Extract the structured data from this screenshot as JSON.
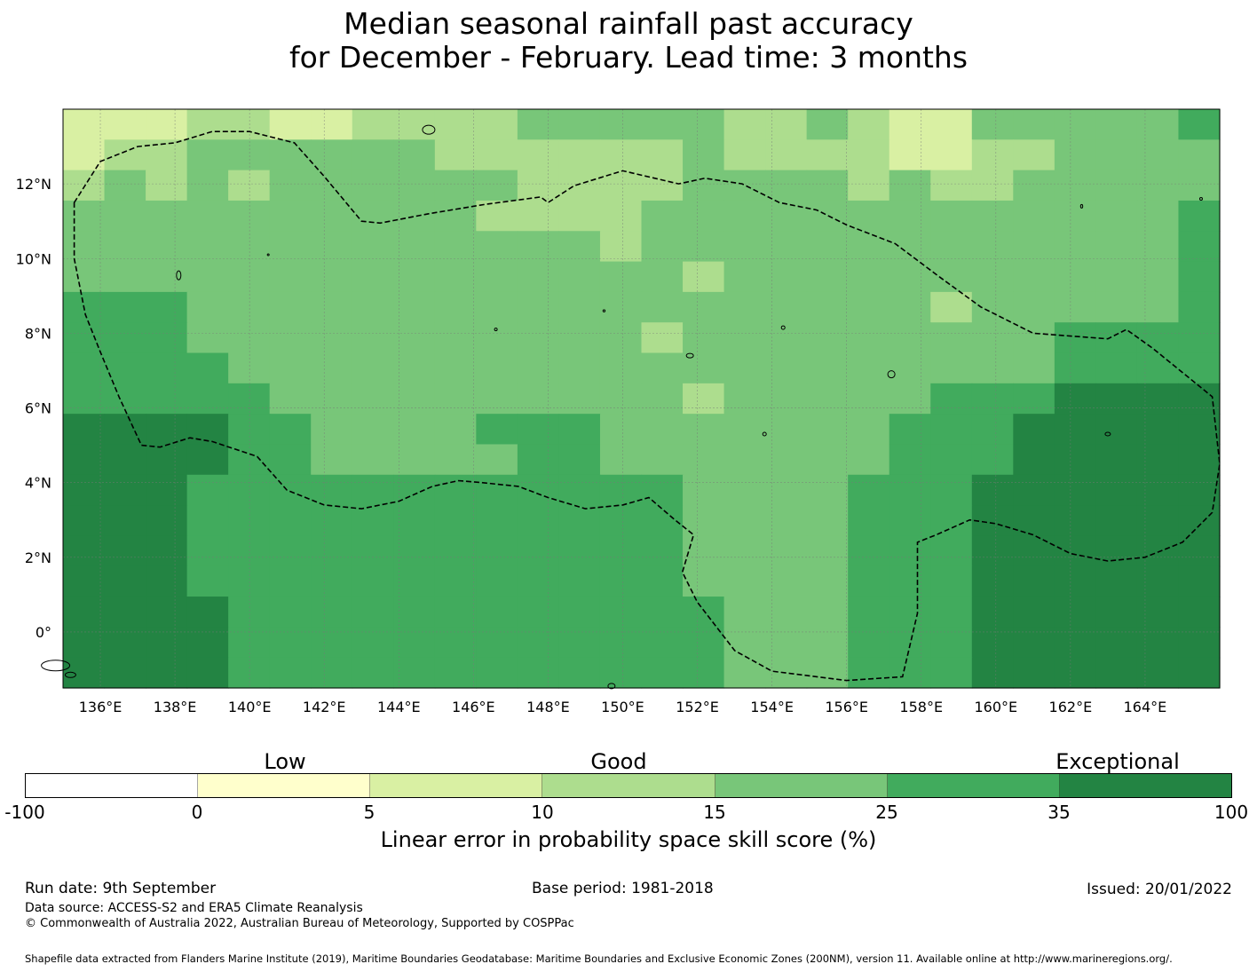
{
  "title_line1": "Median seasonal rainfall past accuracy",
  "title_line2": "for December - February. Lead time: 3 months",
  "chart_data": {
    "type": "heatmap",
    "extent": {
      "lon": [
        135.0,
        166.0
      ],
      "lat": [
        -1.5,
        14.0
      ]
    },
    "grid_cell_deg": 0.833,
    "x_ticks": [
      "136°E",
      "138°E",
      "140°E",
      "142°E",
      "144°E",
      "146°E",
      "148°E",
      "150°E",
      "152°E",
      "154°E",
      "156°E",
      "158°E",
      "160°E",
      "162°E",
      "164°E"
    ],
    "x_tick_values": [
      136,
      138,
      140,
      142,
      144,
      146,
      148,
      150,
      152,
      154,
      156,
      158,
      160,
      162,
      164
    ],
    "y_ticks": [
      "12°N",
      "10°N",
      "8°N",
      "6°N",
      "4°N",
      "2°N",
      "0°"
    ],
    "y_tick_values": [
      12,
      10,
      8,
      6,
      4,
      2,
      0
    ],
    "gridlines": true,
    "category_colors": [
      "#ffffff",
      "#ffffcc",
      "#d9f0a3",
      "#addd8e",
      "#78c679",
      "#41ab5d",
      "#238443"
    ],
    "cells": [
      "2223322333344444334322444445",
      "2334444443333334333322334444",
      "3434344444433334444343344444",
      "4444444444333344444444444445",
      "4444444444444344444444444445",
      "4444444444444443444444444445",
      "5554444444444444444443444445",
      "5554444444444434444444445555",
      "5555444444444444444444445555",
      "5555544444444443444445556666",
      "6666554444555444444455566666",
      "6666554444455444444455566666",
      "6665555555555554444555666666",
      "6665555555555554444555666666",
      "6665555555555554444555666666",
      "6665555555555554444555666666",
      "6666555555555555444555666666",
      "6666555555555555444555666666",
      "6666555555555555444555666666"
    ],
    "eez_boundary_name": "EEZ"
  },
  "colorbar": {
    "category_labels": [
      "Low",
      "Good",
      "Exceptional"
    ],
    "ticks": [
      "-100",
      "0",
      "5",
      "10",
      "15",
      "25",
      "35",
      "100"
    ],
    "colors": [
      "#ffffff",
      "#ffffcc",
      "#d9f0a3",
      "#addd8e",
      "#78c679",
      "#41ab5d",
      "#238443"
    ],
    "label": "Linear error in probability space skill score (%)"
  },
  "footer": {
    "run_date": "Run date: 9th September",
    "base_period": "Base period: 1981-2018",
    "issued": "Issued: 20/01/2022",
    "data_source": "Data source: ACCESS-S2 and ERA5 Climate Reanalysis",
    "copyright": "© Commonwealth of Australia 2022, Australian Bureau of Meteorology, Supported by COSPPac",
    "shapefile": "Shapefile data extracted from Flanders Marine Institute (2019), Maritime Boundaries Geodatabase: Maritime Boundaries and Exclusive Economic Zones (200NM), version 11. Available online at http://www.marineregions.org/."
  }
}
